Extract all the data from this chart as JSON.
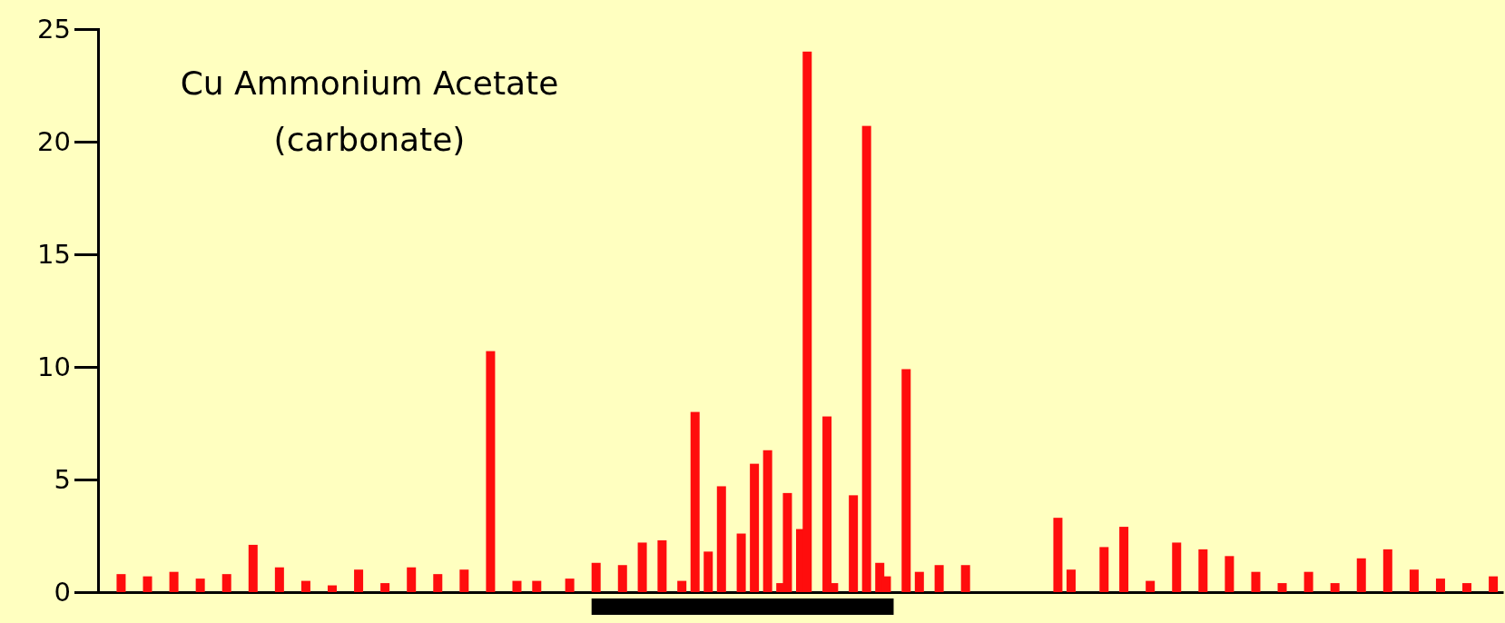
{
  "chart_data": {
    "type": "bar",
    "title": "Cu Ammonium Acetate\n(carbonate)",
    "color": "#ff0d0d",
    "ylim": [
      0,
      25
    ],
    "yticks": [
      0,
      5,
      10,
      15,
      20,
      25
    ],
    "grid": false,
    "categories": [
      null,
      null,
      null,
      null,
      null,
      null,
      null,
      null,
      null,
      null,
      null,
      null,
      null,
      null,
      null,
      null,
      null,
      null,
      null,
      null,
      null,
      null,
      null,
      null,
      null,
      null,
      null,
      null,
      null,
      null,
      null,
      null,
      null,
      null,
      null,
      null,
      null,
      null,
      null,
      null,
      null,
      null,
      null,
      null,
      null,
      null,
      null,
      null,
      null,
      null,
      null,
      null,
      null,
      null,
      null,
      null,
      null,
      null,
      null,
      null,
      null,
      null,
      null,
      null,
      null,
      null,
      null,
      null,
      null,
      null,
      null,
      null,
      null,
      null,
      null,
      null,
      null,
      null,
      null,
      null,
      null,
      null,
      null,
      null,
      null,
      null,
      null,
      null,
      null,
      null,
      null,
      null,
      null,
      null,
      null,
      null,
      null,
      null,
      null,
      null,
      null,
      null,
      null,
      null,
      null,
      null,
      null,
      null,
      null,
      null,
      null,
      null,
      null,
      null,
      null,
      null,
      null,
      null,
      null,
      null,
      null,
      null,
      null,
      null,
      null,
      null,
      null,
      null,
      null,
      null,
      null,
      null,
      null,
      null,
      null,
      null,
      null,
      null,
      null,
      null,
      null,
      null,
      null,
      null,
      null,
      null,
      null,
      null,
      null,
      null,
      null,
      null,
      null,
      null,
      null,
      null,
      null,
      null,
      null,
      null,
      null,
      null,
      null,
      null,
      null,
      null,
      null,
      null,
      null,
      null,
      null,
      null,
      null,
      null,
      null,
      null,
      null,
      null,
      null,
      null,
      null,
      null,
      null,
      null,
      null,
      null,
      null,
      null,
      null,
      null,
      null,
      null,
      null,
      null,
      null,
      null,
      null,
      null,
      null,
      null,
      null,
      null,
      null,
      null,
      null,
      null,
      null,
      null,
      null,
      null,
      null,
      null,
      null
    ],
    "values": [
      null,
      null,
      null,
      0.8,
      null,
      null,
      null,
      0.7,
      null,
      null,
      null,
      0.9,
      null,
      null,
      null,
      0.6,
      null,
      null,
      null,
      0.8,
      null,
      null,
      null,
      2.1,
      null,
      null,
      null,
      1.1,
      null,
      null,
      null,
      0.5,
      null,
      null,
      null,
      0.3,
      null,
      null,
      null,
      1.0,
      null,
      null,
      null,
      0.4,
      null,
      null,
      null,
      1.1,
      null,
      null,
      null,
      0.8,
      null,
      null,
      null,
      1.0,
      null,
      null,
      null,
      10.7,
      null,
      null,
      null,
      0.5,
      null,
      null,
      0.5,
      null,
      null,
      null,
      null,
      0.6,
      null,
      null,
      null,
      1.3,
      null,
      null,
      null,
      1.2,
      null,
      null,
      2.2,
      null,
      null,
      2.3,
      null,
      null,
      0.5,
      null,
      8.0,
      null,
      1.8,
      null,
      4.7,
      null,
      null,
      2.6,
      null,
      5.7,
      null,
      6.3,
      null,
      0.4,
      4.4,
      null,
      2.8,
      24.0,
      null,
      null,
      7.8,
      0.4,
      null,
      null,
      4.3,
      null,
      20.7,
      null,
      1.3,
      0.7,
      null,
      null,
      9.9,
      null,
      0.9,
      null,
      null,
      1.2,
      null,
      null,
      null,
      1.2,
      null,
      null,
      null,
      null,
      null,
      null,
      null,
      null,
      null,
      null,
      null,
      null,
      null,
      3.3,
      null,
      1.0,
      null,
      null,
      null,
      null,
      2.0,
      null,
      null,
      2.9,
      null,
      null,
      null,
      0.5,
      null,
      null,
      null,
      2.2,
      null,
      null,
      null,
      1.9,
      null,
      null,
      null,
      1.6,
      null,
      null,
      null,
      0.9,
      null,
      null,
      null,
      0.4,
      null,
      null,
      null,
      0.9,
      null,
      null,
      null,
      0.4,
      null,
      null,
      null,
      1.5,
      null,
      null,
      null,
      1.9,
      null,
      null,
      null,
      1.0,
      null,
      null,
      null,
      0.6,
      null,
      null,
      null,
      0.4,
      null,
      null,
      null,
      0.7,
      null
    ]
  }
}
